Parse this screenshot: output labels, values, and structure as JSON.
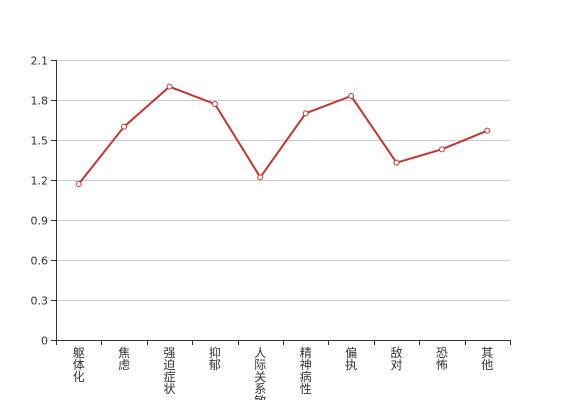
{
  "chart_data": {
    "type": "line",
    "categories": [
      "躯体化",
      "焦虑",
      "强迫症状",
      "抑郁",
      "人际关系敏感",
      "精神病性",
      "偏执",
      "敌对",
      "恐怖",
      "其他"
    ],
    "series": [
      {
        "values": [
          1.17,
          1.6,
          1.9,
          1.77,
          1.22,
          1.7,
          1.83,
          1.33,
          1.43,
          1.57
        ]
      }
    ],
    "yticks": [
      "0",
      "0.3",
      "0.6",
      "0.9",
      "1.2",
      "1.5",
      "1.8",
      "2.1"
    ],
    "ylim": [
      0,
      2.1
    ],
    "grid": true,
    "colors": {
      "line": "#c23531",
      "grid": "#cccccc",
      "axis": "#333333",
      "text": "#333333"
    }
  }
}
